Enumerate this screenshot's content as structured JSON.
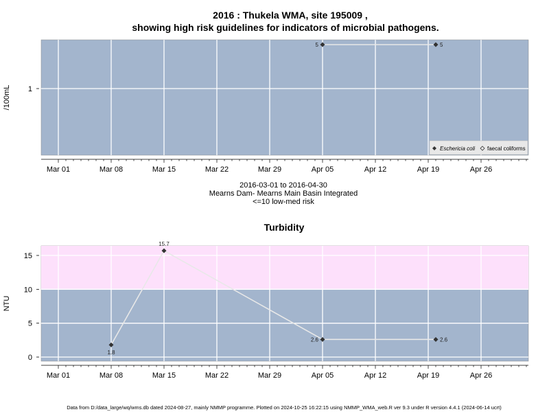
{
  "figure_title_line1": "2016 : Thukela WMA, site 195009 ,",
  "figure_title_line2": "showing high risk guidelines for indicators of microbial pathogens.",
  "subtitle_lines": [
    "2016-03-01 to 2016-04-30",
    "Mearns Dam- Mearns Main Basin Integrated",
    "<=10 low-med risk"
  ],
  "footer": "Data from D:/data_large/wq/wms.db dated 2024-08-27, mainly NMMP programme. Plotted on 2024-10-25 16:22:15 using NMMP_WMA_web.R ver 9.3 under R version 4.4.1 (2024-06-14 ucrt)",
  "colors": {
    "panel_bg": "#a3b5cd",
    "grid": "#ffffff",
    "risk_band": "#fde0fb",
    "line": "#e8e8e8",
    "point": "#333333"
  },
  "chart_data": [
    {
      "type": "line",
      "title": "",
      "ylabel": "/100mL",
      "xlabel": "",
      "x_ticks": [
        "Mar 01",
        "Mar 08",
        "Mar 15",
        "Mar 22",
        "Mar 29",
        "Apr 05",
        "Apr 12",
        "Apr 19",
        "Apr 26"
      ],
      "y_ticks": [
        "1"
      ],
      "y_scale": "log",
      "grid": true,
      "legend": {
        "position": "bottom-right",
        "entries": [
          "Eschericia coli",
          "faecal coliforms"
        ]
      },
      "series": [
        {
          "name": "Eschericia coli",
          "marker": "filled-diamond",
          "points": [
            {
              "x": "2016-04-05",
              "y": 5,
              "label": "5"
            },
            {
              "x": "2016-04-20",
              "y": 5,
              "label": "5"
            }
          ]
        }
      ]
    },
    {
      "type": "line",
      "title": "Turbidity",
      "ylabel": "NTU",
      "xlabel": "",
      "x_ticks": [
        "Mar 01",
        "Mar 08",
        "Mar 15",
        "Mar 22",
        "Mar 29",
        "Apr 05",
        "Apr 12",
        "Apr 19",
        "Apr 26"
      ],
      "y_ticks": [
        "0",
        "5",
        "10",
        "15"
      ],
      "ylim": [
        -0.5,
        16.5
      ],
      "grid": true,
      "risk_band": {
        "from": 10,
        "to": 16.5
      },
      "series": [
        {
          "name": "",
          "marker": "filled-diamond",
          "points": [
            {
              "x": "2016-03-08",
              "y": 1.8,
              "label": "1.8"
            },
            {
              "x": "2016-03-15",
              "y": 15.7,
              "label": "15.7"
            },
            {
              "x": "2016-04-05",
              "y": 2.6,
              "label": "2.6"
            },
            {
              "x": "2016-04-20",
              "y": 2.6,
              "label": "2.6"
            }
          ]
        }
      ]
    }
  ]
}
